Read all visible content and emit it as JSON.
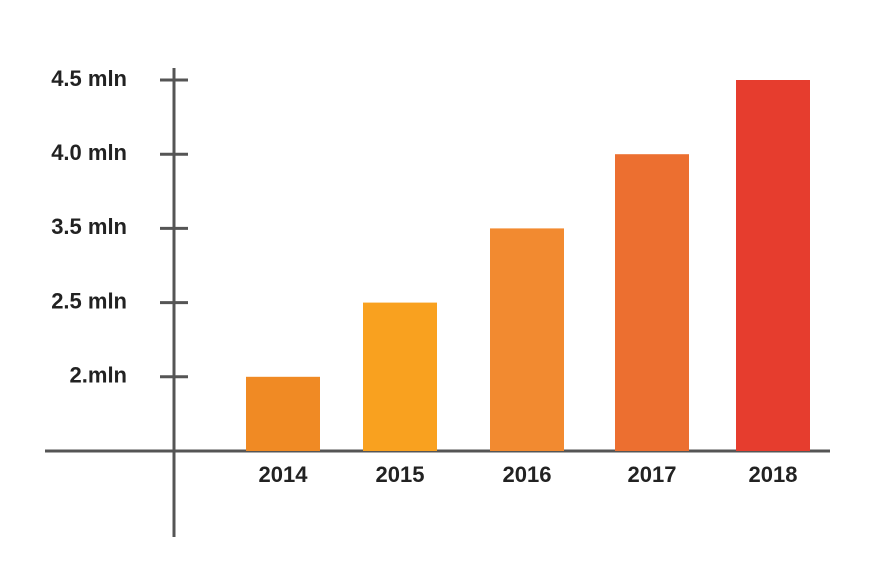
{
  "chart_data": {
    "type": "bar",
    "categories": [
      "2014",
      "2015",
      "2016",
      "2017",
      "2018"
    ],
    "values": [
      2,
      2.5,
      3.5,
      4,
      4.5
    ],
    "colors": [
      "#f08a24",
      "#f9a11f",
      "#f28a30",
      "#ec6f30",
      "#e63d2e"
    ],
    "ylim": [
      1.5,
      4.5
    ],
    "yticks": [
      {
        "value": 2,
        "label": "2.mln"
      },
      {
        "value": 2.5,
        "label": "2.5 mln"
      },
      {
        "value": 3.5,
        "label": "3.5 mln"
      },
      {
        "value": 4,
        "label": "4.0 mln"
      },
      {
        "value": 4.5,
        "label": "4.5 mln"
      }
    ]
  }
}
